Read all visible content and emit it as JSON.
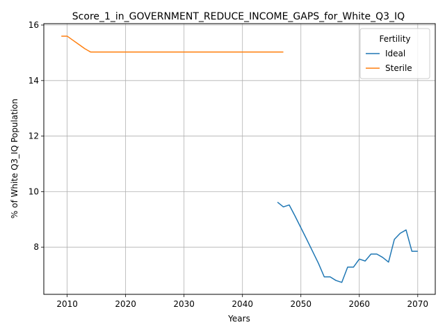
{
  "chart_data": {
    "type": "line",
    "title": "Score_1_in_GOVERNMENT_REDUCE_INCOME_GAPS_for_White_Q3_IQ",
    "xlabel": "Years",
    "ylabel": "% of White Q3_IQ Population",
    "xlim": [
      2006,
      2073
    ],
    "ylim": [
      6.3,
      16.05
    ],
    "xticks": [
      2010,
      2020,
      2030,
      2040,
      2050,
      2060,
      2070
    ],
    "yticks": [
      8,
      10,
      12,
      14,
      16
    ],
    "grid": true,
    "legend": {
      "title": "Fertility",
      "placement": "top-right"
    },
    "series": [
      {
        "name": "Ideal",
        "color": "#1f77b4",
        "x": [
          2046,
          2047,
          2048,
          2049,
          2050,
          2051,
          2052,
          2053,
          2054,
          2055,
          2056,
          2057,
          2058,
          2059,
          2060,
          2061,
          2062,
          2063,
          2064,
          2065,
          2066,
          2067,
          2068,
          2069,
          2070
        ],
        "y": [
          9.62,
          9.45,
          9.52,
          9.12,
          8.7,
          8.28,
          7.85,
          7.42,
          6.93,
          6.93,
          6.8,
          6.73,
          7.28,
          7.28,
          7.57,
          7.5,
          7.75,
          7.75,
          7.63,
          7.46,
          8.28,
          8.5,
          8.62,
          7.85,
          7.85
        ]
      },
      {
        "name": "Sterile",
        "color": "#ff7f0e",
        "x": [
          2009,
          2010,
          2011,
          2012,
          2013,
          2014,
          2015,
          2020,
          2025,
          2030,
          2035,
          2040,
          2045,
          2047
        ],
        "y": [
          15.6,
          15.6,
          15.45,
          15.3,
          15.15,
          15.03,
          15.03,
          15.03,
          15.03,
          15.03,
          15.03,
          15.03,
          15.03,
          15.03
        ]
      }
    ]
  }
}
